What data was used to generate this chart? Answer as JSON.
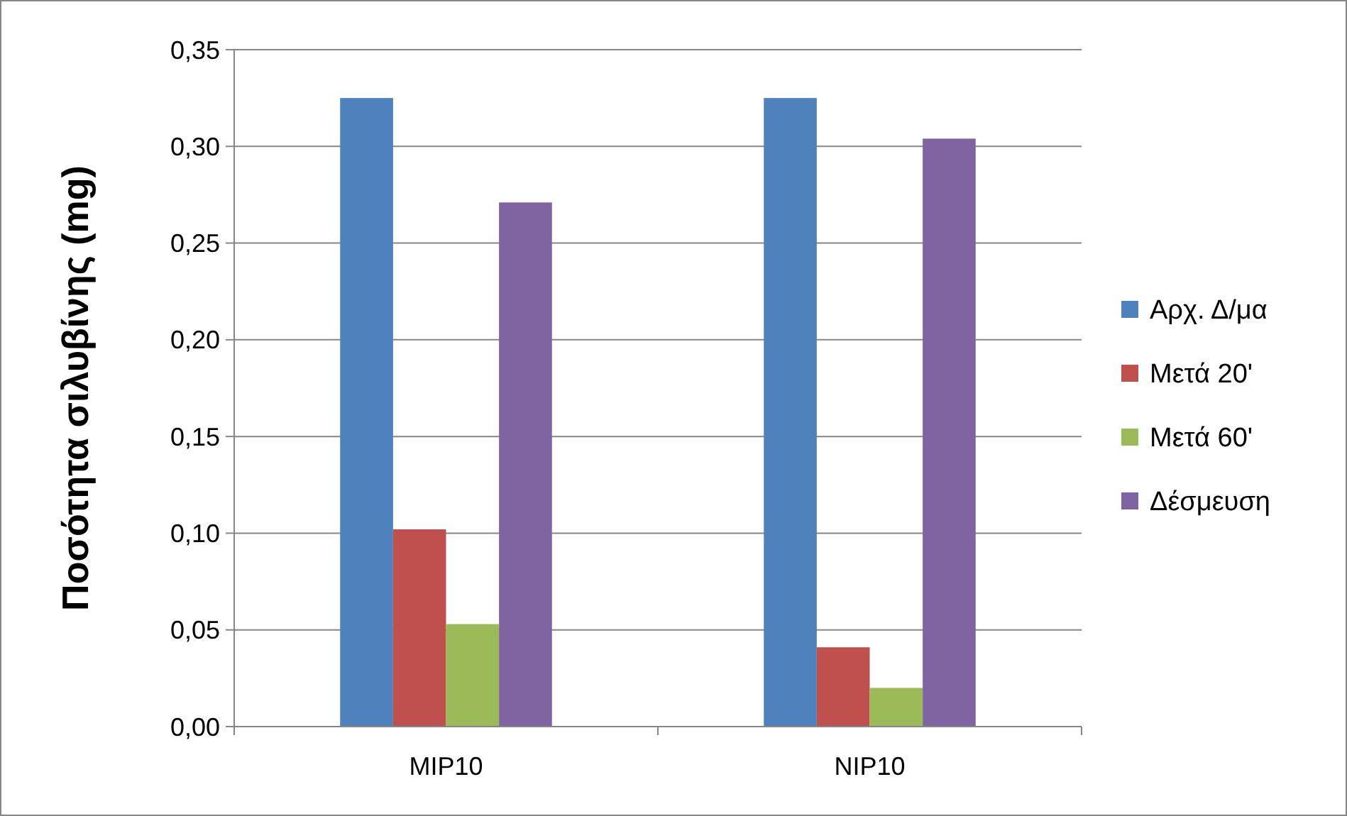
{
  "chart_data": {
    "type": "bar",
    "ylabel": "Ποσότητα σιλυβίνης (mg)",
    "categories": [
      "MIP10",
      "NIP10"
    ],
    "series": [
      {
        "name": "Αρχ. Δ/μα",
        "color": "#4f81bd",
        "values": [
          0.325,
          0.325
        ]
      },
      {
        "name": "Μετά 20'",
        "color": "#c0504d",
        "values": [
          0.102,
          0.041
        ]
      },
      {
        "name": "Μετά 60'",
        "color": "#9bbb59",
        "values": [
          0.053,
          0.02
        ]
      },
      {
        "name": "Δέσμευση",
        "color": "#8064a2",
        "values": [
          0.271,
          0.304
        ]
      }
    ],
    "ylim": [
      0,
      0.35
    ],
    "yticks": [
      {
        "value": 0,
        "label": "0,00"
      },
      {
        "value": 0.05,
        "label": "0,05"
      },
      {
        "value": 0.1,
        "label": "0,10"
      },
      {
        "value": 0.15,
        "label": "0,15"
      },
      {
        "value": 0.2,
        "label": "0,20"
      },
      {
        "value": 0.25,
        "label": "0,25"
      },
      {
        "value": 0.3,
        "label": "0,30"
      },
      {
        "value": 0.35,
        "label": "0,35"
      }
    ],
    "grid": "y",
    "legend": "right"
  }
}
